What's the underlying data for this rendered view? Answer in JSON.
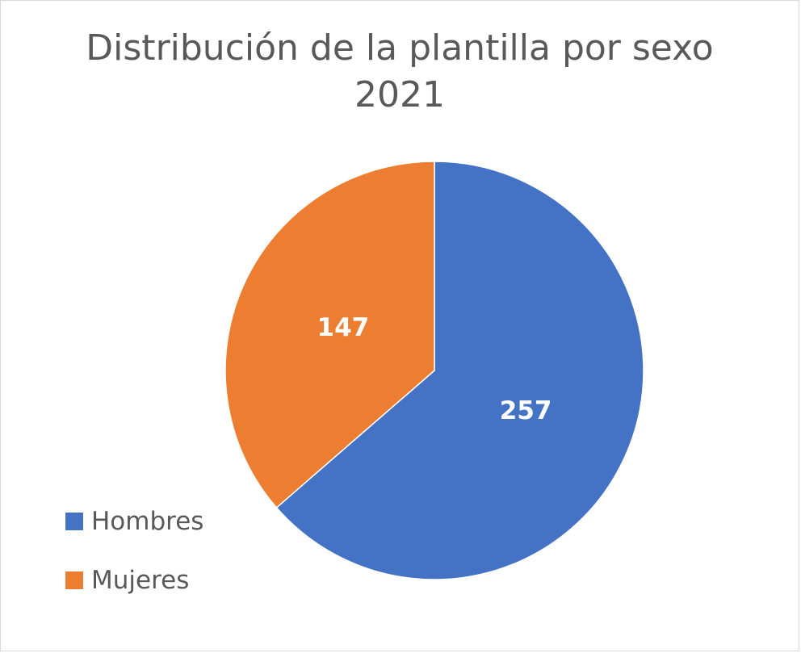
{
  "chart_data": {
    "type": "pie",
    "title": "Distribución de la plantilla por sexo",
    "subtitle": "2021",
    "categories": [
      "Hombres",
      "Mujeres"
    ],
    "values": [
      257,
      147
    ],
    "colors": [
      "#4472C4",
      "#ED7D31"
    ],
    "data_labels": [
      "257",
      "147"
    ],
    "legend_position": "left-bottom"
  }
}
